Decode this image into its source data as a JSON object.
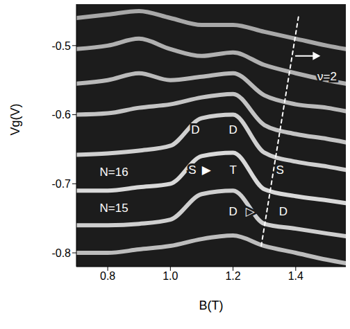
{
  "chart_data": {
    "type": "line",
    "xlabel": "B(T)",
    "ylabel": "Vg(V)",
    "color": "#1c1c1c",
    "grid": false,
    "xlim": [
      0.7,
      1.56
    ],
    "xticks": [
      0.8,
      {
        "value": 1,
        "label": "1.0"
      },
      1.2,
      1.4
    ],
    "ylim": [
      -0.82,
      -0.44
    ],
    "yticks": [
      -0.5,
      -0.6,
      -0.7,
      -0.8
    ],
    "series": [
      {
        "color": "#bdbdbd",
        "x": [
          0.7,
          0.8,
          0.9,
          1.0,
          1.1,
          1.2,
          1.3,
          1.4,
          1.5,
          1.56
        ],
        "values": [
          -0.8,
          -0.8,
          -0.795,
          -0.79,
          -0.78,
          -0.775,
          -0.79,
          -0.8,
          -0.81,
          -0.815
        ]
      },
      {
        "color": "#cfcfcf",
        "x": [
          0.7,
          0.8,
          0.9,
          1.0,
          1.1,
          1.2,
          1.3,
          1.4,
          1.5,
          1.56
        ],
        "values": [
          -0.76,
          -0.76,
          -0.758,
          -0.752,
          -0.715,
          -0.71,
          -0.758,
          -0.765,
          -0.772,
          -0.776
        ]
      },
      {
        "color": "#d9d9d9",
        "x": [
          0.7,
          0.8,
          0.9,
          1.0,
          1.1,
          1.2,
          1.3,
          1.4,
          1.5,
          1.56
        ],
        "values": [
          -0.71,
          -0.71,
          -0.705,
          -0.7,
          -0.66,
          -0.655,
          -0.708,
          -0.718,
          -0.724,
          -0.728
        ]
      },
      {
        "color": "#d0d0d0",
        "x": [
          0.7,
          0.8,
          0.9,
          1.0,
          1.1,
          1.2,
          1.3,
          1.4,
          1.5,
          1.56
        ],
        "values": [
          -0.658,
          -0.656,
          -0.652,
          -0.645,
          -0.605,
          -0.6,
          -0.655,
          -0.668,
          -0.675,
          -0.68
        ]
      },
      {
        "color": "#c4c4c4",
        "x": [
          0.7,
          0.8,
          0.9,
          1.0,
          1.1,
          1.2,
          1.3,
          1.4,
          1.5,
          1.56
        ],
        "values": [
          -0.6,
          -0.598,
          -0.59,
          -0.585,
          -0.575,
          -0.57,
          -0.615,
          -0.628,
          -0.635,
          -0.64
        ]
      },
      {
        "color": "#bababa",
        "x": [
          0.7,
          0.8,
          0.9,
          1.0,
          1.1,
          1.2,
          1.3,
          1.4,
          1.5,
          1.56
        ],
        "values": [
          -0.555,
          -0.55,
          -0.54,
          -0.55,
          -0.545,
          -0.54,
          -0.572,
          -0.585,
          -0.59,
          -0.595
        ]
      },
      {
        "color": "#b0b0b0",
        "x": [
          0.7,
          0.8,
          0.9,
          1.0,
          1.1,
          1.2,
          1.3,
          1.4,
          1.5,
          1.56
        ],
        "values": [
          -0.505,
          -0.5,
          -0.49,
          -0.505,
          -0.515,
          -0.51,
          -0.528,
          -0.54,
          -0.55,
          -0.555
        ]
      },
      {
        "color": "#a8a8a8",
        "x": [
          0.7,
          0.8,
          0.9,
          1.0,
          1.1,
          1.2,
          1.3,
          1.4,
          1.5,
          1.56
        ],
        "values": [
          -0.46,
          -0.455,
          -0.45,
          -0.46,
          -0.47,
          -0.47,
          -0.48,
          -0.49,
          -0.5,
          -0.505
        ]
      },
      {
        "color": "#ffffff",
        "line_style": "dashed",
        "x": [
          1.29,
          1.41
        ],
        "values": [
          -0.79,
          -0.455
        ]
      },
      {
        "color": "#ffffff",
        "marker": "arrow",
        "x": [
          1.4,
          1.47
        ],
        "values": [
          -0.515,
          -0.515
        ]
      }
    ],
    "annotations": [
      {
        "text": "D",
        "x": 1.08,
        "y": -0.622
      },
      {
        "text": "D",
        "x": 1.2,
        "y": -0.622
      },
      {
        "text": "S",
        "x": 1.07,
        "y": -0.68
      },
      {
        "text": "▶",
        "x": 1.115,
        "y": -0.68
      },
      {
        "text": "T",
        "x": 1.2,
        "y": -0.68
      },
      {
        "text": "S",
        "x": 1.35,
        "y": -0.68
      },
      {
        "text": "D",
        "x": 1.2,
        "y": -0.74
      },
      {
        "text": "▷",
        "x": 1.255,
        "y": -0.74
      },
      {
        "text": "D",
        "x": 1.36,
        "y": -0.74
      },
      {
        "text": "N=16",
        "x": 0.82,
        "y": -0.683
      },
      {
        "text": "N=15",
        "x": 0.82,
        "y": -0.735
      },
      {
        "text": "ν=2",
        "x": 1.5,
        "y": -0.545
      }
    ]
  }
}
